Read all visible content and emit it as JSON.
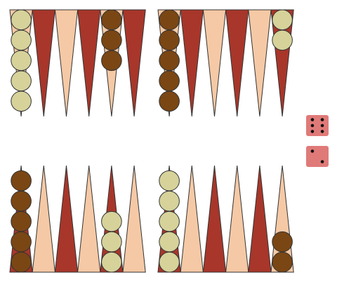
{
  "colors": {
    "background": "#ffffff",
    "point_dark": "#a8362a",
    "point_light": "#f5c9a5",
    "checker_light": "#d6d29a",
    "checker_dark": "#7a4614",
    "outline": "#333333",
    "die": "#df7a78",
    "pip": "#111111"
  },
  "points": {
    "top": [
      {
        "color": "light",
        "checker": "light",
        "count": 5
      },
      {
        "color": "dark",
        "checker": null,
        "count": 0
      },
      {
        "color": "light",
        "checker": null,
        "count": 0
      },
      {
        "color": "dark",
        "checker": null,
        "count": 0
      },
      {
        "color": "light",
        "checker": "dark",
        "count": 3
      },
      {
        "color": "dark",
        "checker": null,
        "count": 0
      },
      {
        "color": "light",
        "checker": "dark",
        "count": 5
      },
      {
        "color": "dark",
        "checker": null,
        "count": 0
      },
      {
        "color": "light",
        "checker": null,
        "count": 0
      },
      {
        "color": "dark",
        "checker": null,
        "count": 0
      },
      {
        "color": "light",
        "checker": null,
        "count": 0
      },
      {
        "color": "dark",
        "checker": "light",
        "count": 2
      }
    ],
    "bottom": [
      {
        "color": "dark",
        "checker": "dark",
        "count": 5
      },
      {
        "color": "light",
        "checker": null,
        "count": 0
      },
      {
        "color": "dark",
        "checker": null,
        "count": 0
      },
      {
        "color": "light",
        "checker": null,
        "count": 0
      },
      {
        "color": "dark",
        "checker": "light",
        "count": 3
      },
      {
        "color": "light",
        "checker": null,
        "count": 0
      },
      {
        "color": "dark",
        "checker": "light",
        "count": 5
      },
      {
        "color": "light",
        "checker": null,
        "count": 0
      },
      {
        "color": "dark",
        "checker": null,
        "count": 0
      },
      {
        "color": "light",
        "checker": null,
        "count": 0
      },
      {
        "color": "dark",
        "checker": null,
        "count": 0
      },
      {
        "color": "light",
        "checker": "dark",
        "count": 2
      }
    ]
  },
  "dice": [
    6,
    2
  ]
}
